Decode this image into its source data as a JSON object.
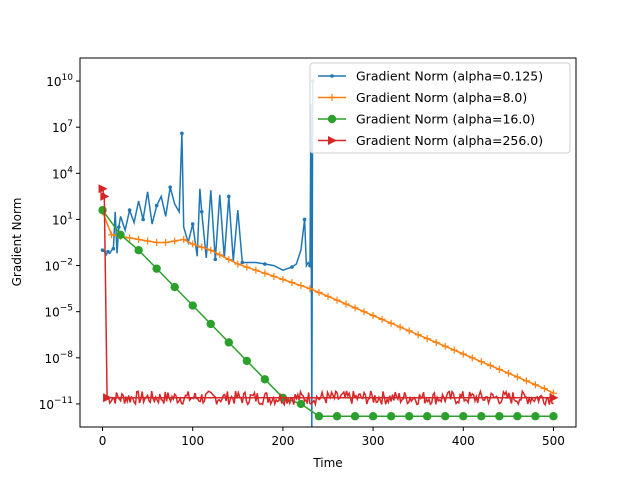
{
  "chart_data": {
    "type": "line",
    "title": "",
    "xlabel": "Time",
    "ylabel": "Gradient Norm",
    "x_range": [
      -25,
      525
    ],
    "y_range_log10": [
      -12.5,
      11.5
    ],
    "y_scale": "log",
    "grid": false,
    "legend_position": "top-right",
    "x_ticks": [
      {
        "value": 0,
        "label": "0"
      },
      {
        "value": 100,
        "label": "100"
      },
      {
        "value": 200,
        "label": "200"
      },
      {
        "value": 300,
        "label": "300"
      },
      {
        "value": 400,
        "label": "400"
      },
      {
        "value": 500,
        "label": "500"
      }
    ],
    "y_ticks": [
      {
        "exp": 10,
        "base": "10",
        "sup": "10"
      },
      {
        "exp": 7,
        "base": "10",
        "sup": "7"
      },
      {
        "exp": 4,
        "base": "10",
        "sup": "4"
      },
      {
        "exp": 1,
        "base": "10",
        "sup": "1"
      },
      {
        "exp": -2,
        "base": "10",
        "sup": "−2"
      },
      {
        "exp": -5,
        "base": "10",
        "sup": "−5"
      },
      {
        "exp": -8,
        "base": "10",
        "sup": "−8"
      },
      {
        "exp": -11,
        "base": "10",
        "sup": "−11"
      }
    ],
    "series": [
      {
        "name": "Gradient Norm (alpha=0.125)",
        "color": "#1f77b4",
        "marker": "point",
        "x": [
          0,
          2,
          4,
          6,
          8,
          10,
          12,
          14,
          16,
          18,
          20,
          25,
          30,
          35,
          40,
          45,
          50,
          55,
          60,
          65,
          70,
          75,
          80,
          85,
          88,
          90,
          95,
          100,
          105,
          108,
          110,
          115,
          120,
          125,
          130,
          135,
          140,
          145,
          150,
          155,
          160,
          170,
          180,
          190,
          200,
          210,
          215,
          220,
          224,
          226,
          228,
          230,
          231,
          232,
          233
        ],
        "y_log10": [
          -1,
          -1.1,
          -1.3,
          -1.1,
          -1.2,
          -1.0,
          -0.9,
          1.5,
          -1.2,
          0.5,
          1.2,
          0.3,
          1.6,
          0.8,
          2.2,
          1.0,
          2.8,
          0.7,
          1.9,
          2.5,
          1.2,
          3.1,
          2.0,
          1.5,
          6.6,
          0.5,
          -0.5,
          0.7,
          -1.4,
          3.0,
          1.5,
          -1.5,
          2.9,
          -1.6,
          2.6,
          -1.5,
          2.5,
          -1.7,
          1.6,
          -1.8,
          -1.8,
          -1.8,
          -1.9,
          -2.0,
          -2.3,
          -2.1,
          -1.9,
          -1.0,
          1.0,
          -2.0,
          -1.8,
          -2.0,
          8.5,
          -13,
          10
        ]
      },
      {
        "name": "Gradient Norm (alpha=8.0)",
        "color": "#ff7f0e",
        "marker": "plus",
        "x": [
          0,
          10,
          20,
          30,
          40,
          50,
          60,
          70,
          80,
          90,
          100,
          110,
          120,
          130,
          140,
          150,
          160,
          170,
          180,
          190,
          200,
          210,
          220,
          230,
          240,
          250,
          260,
          270,
          280,
          290,
          300,
          310,
          320,
          330,
          340,
          350,
          360,
          370,
          380,
          390,
          400,
          410,
          420,
          430,
          440,
          450,
          460,
          470,
          480,
          490,
          500
        ],
        "y_log10": [
          1.5,
          0,
          -0.1,
          -0.2,
          -0.3,
          -0.4,
          -0.5,
          -0.5,
          -0.4,
          -0.3,
          -0.6,
          -0.8,
          -1.0,
          -1.3,
          -1.6,
          -1.9,
          -2.1,
          -2.3,
          -2.5,
          -2.7,
          -2.9,
          -3.1,
          -3.3,
          -3.5,
          -3.75,
          -4.0,
          -4.25,
          -4.5,
          -4.75,
          -5.0,
          -5.25,
          -5.5,
          -5.75,
          -6.0,
          -6.25,
          -6.5,
          -6.75,
          -7.0,
          -7.25,
          -7.5,
          -7.75,
          -8.0,
          -8.25,
          -8.5,
          -8.75,
          -9.0,
          -9.25,
          -9.5,
          -9.75,
          -10.0,
          -10.3
        ]
      },
      {
        "name": "Gradient Norm (alpha=16.0)",
        "color": "#2ca02c",
        "marker": "circle",
        "x": [
          0,
          20,
          40,
          60,
          80,
          100,
          120,
          140,
          160,
          180,
          200,
          220,
          240,
          260,
          280,
          300,
          320,
          340,
          360,
          380,
          400,
          420,
          440,
          460,
          480,
          500
        ],
        "y_log10": [
          1.6,
          0.0,
          -1.0,
          -2.2,
          -3.4,
          -4.6,
          -5.8,
          -7.0,
          -8.2,
          -9.4,
          -10.6,
          -11.0,
          -11.8,
          -11.8,
          -11.8,
          -11.8,
          -11.8,
          -11.8,
          -11.8,
          -11.8,
          -11.8,
          -11.8,
          -11.8,
          -11.8,
          -11.8,
          -11.8
        ]
      },
      {
        "name": "Gradient Norm (alpha=256.0)",
        "color": "#d62728",
        "marker": "triangle-right",
        "x": [
          0,
          2,
          5,
          500
        ],
        "y_log10": [
          3.0,
          2.5,
          -10.6,
          -10.6
        ]
      }
    ]
  }
}
